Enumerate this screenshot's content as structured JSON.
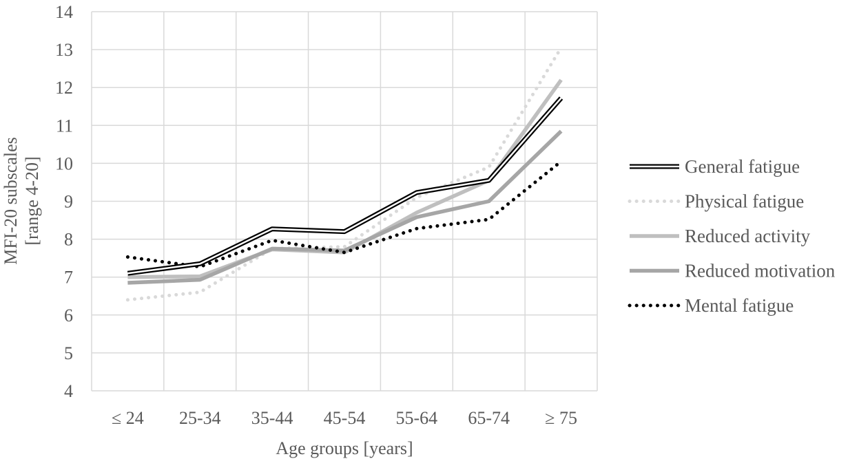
{
  "chart_data": {
    "type": "line",
    "xlabel": "Age groups [years]",
    "ylabel_lines": [
      "MFI-20 subscales",
      "[range 4-20]"
    ],
    "categories": [
      "≤ 24",
      "25-34",
      "35-44",
      "45-54",
      "55-64",
      "65-74",
      "≥ 75"
    ],
    "ylim": [
      4,
      14
    ],
    "yticks": [
      "4",
      "5",
      "6",
      "7",
      "8",
      "9",
      "10",
      "11",
      "12",
      "13",
      "14"
    ],
    "grid": true,
    "legend_position": "right",
    "series": [
      {
        "name": "General fatigue",
        "style": "double",
        "color": "#000000",
        "values": [
          7.1,
          7.35,
          8.27,
          8.2,
          9.23,
          9.55,
          11.72
        ]
      },
      {
        "name": "Physical fatigue",
        "style": "dotted",
        "color": "#d9d9d9",
        "values": [
          6.4,
          6.6,
          7.75,
          7.8,
          9.1,
          9.9,
          13.05
        ]
      },
      {
        "name": "Reduced activity",
        "style": "solid",
        "color": "#bfbfbf",
        "values": [
          7.0,
          7.02,
          7.73,
          7.65,
          8.7,
          9.55,
          12.2
        ]
      },
      {
        "name": "Reduced motivation",
        "style": "solid",
        "color": "#a6a6a6",
        "values": [
          6.85,
          6.93,
          7.75,
          7.7,
          8.58,
          9.0,
          10.85
        ]
      },
      {
        "name": "Mental fatigue",
        "style": "dotted",
        "color": "#000000",
        "values": [
          7.53,
          7.27,
          7.97,
          7.65,
          8.28,
          8.52,
          10.05
        ]
      }
    ]
  }
}
